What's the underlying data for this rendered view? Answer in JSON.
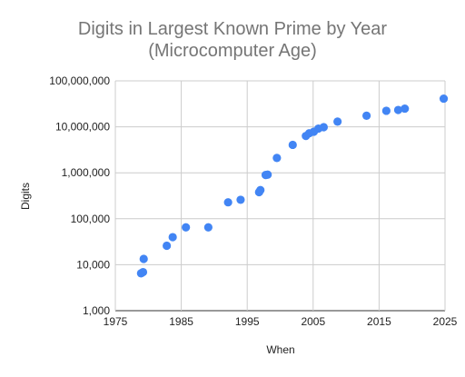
{
  "chart_data": {
    "type": "scatter",
    "title": [
      "Digits in Largest Known Prime by Year",
      "(Microcomputer Age)"
    ],
    "xlabel": "When",
    "ylabel": "Digits",
    "xlim": [
      1975,
      2025
    ],
    "ylim": [
      1000,
      100000000
    ],
    "y_scale": "log",
    "grid": true,
    "legend": "none",
    "point_color": "#4285f4",
    "x_ticks": [
      "1975",
      "1985",
      "1995",
      "2005",
      "2015",
      "2025"
    ],
    "y_ticks": [
      "1,000",
      "10,000",
      "100,000",
      "1,000,000",
      "10,000,000",
      "100,000,000"
    ],
    "points": [
      {
        "x": 1978.9,
        "y": 6500
      },
      {
        "x": 1979.2,
        "y": 6900
      },
      {
        "x": 1979.3,
        "y": 13400
      },
      {
        "x": 1982.8,
        "y": 25900
      },
      {
        "x": 1983.7,
        "y": 39800
      },
      {
        "x": 1985.7,
        "y": 65100
      },
      {
        "x": 1989.1,
        "y": 65100
      },
      {
        "x": 1992.1,
        "y": 227800
      },
      {
        "x": 1994.0,
        "y": 258700
      },
      {
        "x": 1996.8,
        "y": 378600
      },
      {
        "x": 1997.0,
        "y": 420900
      },
      {
        "x": 1997.8,
        "y": 895900
      },
      {
        "x": 1998.1,
        "y": 909500
      },
      {
        "x": 1999.5,
        "y": 2098900
      },
      {
        "x": 2001.9,
        "y": 4053900
      },
      {
        "x": 2003.9,
        "y": 6320400
      },
      {
        "x": 2004.4,
        "y": 7235700
      },
      {
        "x": 2005.1,
        "y": 7816200
      },
      {
        "x": 2005.8,
        "y": 9152000
      },
      {
        "x": 2006.6,
        "y": 9808400
      },
      {
        "x": 2008.7,
        "y": 12978200
      },
      {
        "x": 2013.1,
        "y": 17425200
      },
      {
        "x": 2016.1,
        "y": 22338600
      },
      {
        "x": 2017.9,
        "y": 23249400
      },
      {
        "x": 2018.9,
        "y": 24862000
      },
      {
        "x": 2024.8,
        "y": 41024300
      }
    ]
  }
}
